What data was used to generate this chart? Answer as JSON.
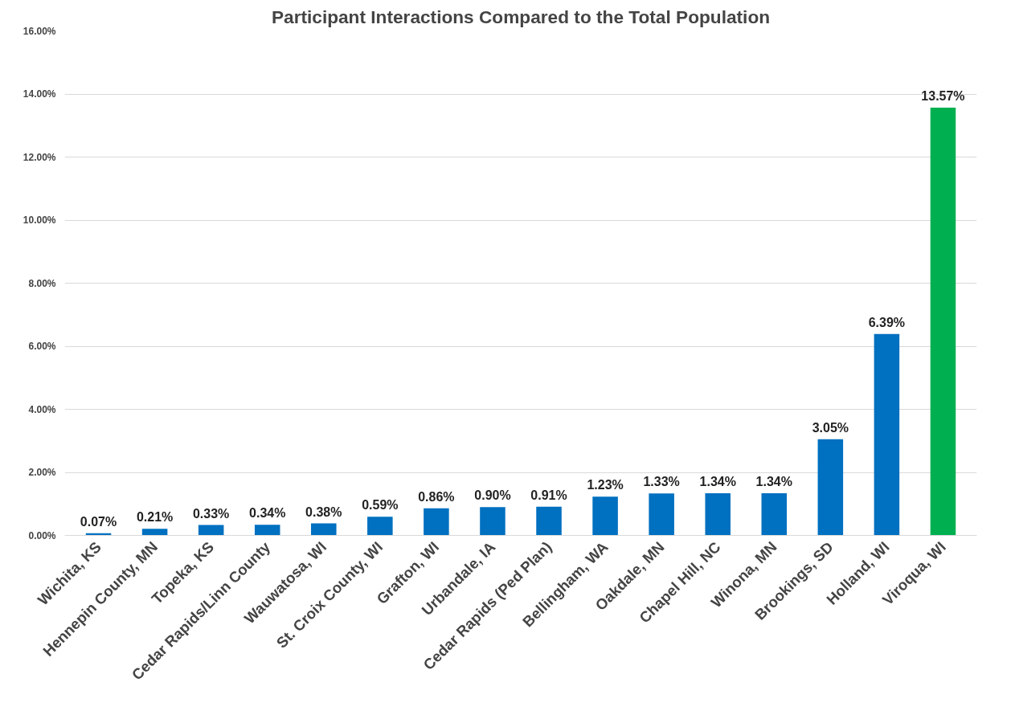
{
  "chart_data": {
    "type": "bar",
    "title": "Participant Interactions Compared to the Total Population",
    "categories": [
      "Wichita, KS",
      "Hennepin County, MN",
      "Topeka, KS",
      "Cedar Rapids/Linn County",
      "Wauwatosa, WI",
      "St. Croix County, WI",
      "Grafton, WI",
      "Urbandale, IA",
      "Cedar Rapids (Ped Plan)",
      "Bellingham, WA",
      "Oakdale, MN",
      "Chapel Hill, NC",
      "Winona, MN",
      "Brookings, SD",
      "Holland, WI",
      "Viroqua, WI"
    ],
    "values": [
      0.07,
      0.21,
      0.33,
      0.34,
      0.38,
      0.59,
      0.86,
      0.9,
      0.91,
      1.23,
      1.33,
      1.34,
      1.34,
      3.05,
      6.39,
      13.57
    ],
    "value_labels": [
      "0.07%",
      "0.21%",
      "0.33%",
      "0.34%",
      "0.38%",
      "0.59%",
      "0.86%",
      "0.90%",
      "0.91%",
      "1.23%",
      "1.33%",
      "1.34%",
      "1.34%",
      "3.05%",
      "6.39%",
      "13.57%"
    ],
    "colors": [
      "#0070c0",
      "#0070c0",
      "#0070c0",
      "#0070c0",
      "#0070c0",
      "#0070c0",
      "#0070c0",
      "#0070c0",
      "#0070c0",
      "#0070c0",
      "#0070c0",
      "#0070c0",
      "#0070c0",
      "#0070c0",
      "#0070c0",
      "#00b050"
    ],
    "ylim": [
      0,
      16
    ],
    "yticks": [
      {
        "value": 0,
        "label": "0.00%"
      },
      {
        "value": 2,
        "label": "2.00%"
      },
      {
        "value": 4,
        "label": "4.00%"
      },
      {
        "value": 6,
        "label": "6.00%"
      },
      {
        "value": 8,
        "label": "8.00%"
      },
      {
        "value": 10,
        "label": "10.00%"
      },
      {
        "value": 12,
        "label": "12.00%"
      },
      {
        "value": 14,
        "label": "14.00%"
      },
      {
        "value": 16,
        "label": "16.00%"
      }
    ],
    "grid": "y"
  }
}
